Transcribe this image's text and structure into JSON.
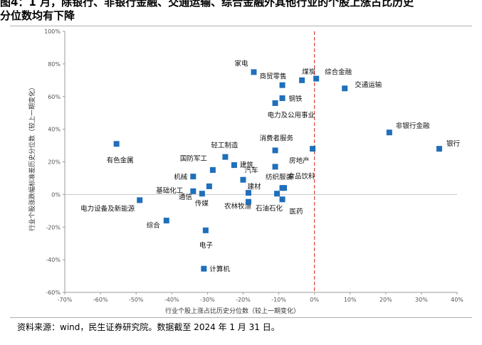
{
  "title_line1": "图4：1 月，除银行、非银行金融、交通运输、综合金融外其他行业的个股上涨占比历史",
  "title_line2": "分位数均有下降",
  "source": "资料来源：wind，民生证券研究院。数据截至 2024 年 1 月 31 日。",
  "colors": {
    "marker": "#1f6fba",
    "refline": "#d9453a",
    "axis": "#999999"
  },
  "chart_data": {
    "type": "scatter",
    "title": "",
    "xlabel": "行业个股上涨占比历史分位数（较上一期变化）",
    "ylabel": "行业个股涨跌幅标准差历史分位数（较上一期变化）",
    "xlim": [
      -70,
      40
    ],
    "ylim": [
      -60,
      100
    ],
    "xticks": [
      -70,
      -60,
      -50,
      -40,
      -30,
      -20,
      -10,
      0,
      10,
      20,
      30,
      40
    ],
    "yticks": [
      -60,
      -40,
      -20,
      0,
      20,
      40,
      60,
      80,
      100
    ],
    "xtick_labels": [
      "-70%",
      "-60%",
      "-50%",
      "-40%",
      "-30%",
      "-20%",
      "-10%",
      "0%",
      "10%",
      "20%",
      "30%",
      "40%"
    ],
    "ytick_labels": [
      "-60%",
      "-40%",
      "-20%",
      "0%",
      "20%",
      "40%",
      "60%",
      "80%",
      "100%"
    ],
    "reference_line": {
      "x": 0,
      "style": "dashed"
    },
    "points": [
      {
        "name": "家电",
        "x": -17,
        "y": 75
      },
      {
        "name": "商贸零售",
        "x": -9,
        "y": 67
      },
      {
        "name": "煤炭",
        "x": -3.5,
        "y": 70
      },
      {
        "name": "综合金融",
        "x": 0.5,
        "y": 71
      },
      {
        "name": "交通运输",
        "x": 8.5,
        "y": 65
      },
      {
        "name": "钢铁",
        "x": -9,
        "y": 59
      },
      {
        "name": "电力及公用事业",
        "x": -11,
        "y": 56
      },
      {
        "name": "非银行金融",
        "x": 21,
        "y": 38
      },
      {
        "name": "银行",
        "x": 35,
        "y": 28
      },
      {
        "name": "有色金属",
        "x": -55.5,
        "y": 31
      },
      {
        "name": "消费者服务",
        "x": -11,
        "y": 27
      },
      {
        "name": "房地产",
        "x": -0.5,
        "y": 28
      },
      {
        "name": "轻工制造",
        "x": -25,
        "y": 23
      },
      {
        "name": "国防军工",
        "x": -28.5,
        "y": 15
      },
      {
        "name": "建筑",
        "x": -22.5,
        "y": 18
      },
      {
        "name": "汽车",
        "x": -11,
        "y": 17
      },
      {
        "name": "机械",
        "x": -34,
        "y": 11
      },
      {
        "name": "建材",
        "x": -20,
        "y": 9
      },
      {
        "name": "纺织服装",
        "x": -8.5,
        "y": 4
      },
      {
        "name": "食品饮料",
        "x": -9,
        "y": 4
      },
      {
        "name": "基础化工",
        "x": -34,
        "y": 2
      },
      {
        "name": "传媒",
        "x": -29.5,
        "y": 5
      },
      {
        "name": "通信",
        "x": -31.5,
        "y": 0.5
      },
      {
        "name": "农林牧渔",
        "x": -18.5,
        "y": 1
      },
      {
        "name": "石油石化",
        "x": -10.5,
        "y": 0.5
      },
      {
        "name": "医药",
        "x": -9,
        "y": -3
      },
      {
        "name": "_extra",
        "x": -18.5,
        "y": -4.5
      },
      {
        "name": "电力设备及新能源",
        "x": -49,
        "y": -3.5
      },
      {
        "name": "综合",
        "x": -41.5,
        "y": -16
      },
      {
        "name": "电子",
        "x": -30.5,
        "y": -22
      },
      {
        "name": "计算机",
        "x": -31,
        "y": -45.5
      }
    ]
  }
}
